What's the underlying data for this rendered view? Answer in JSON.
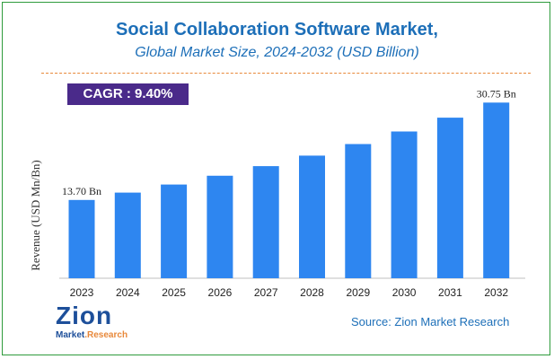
{
  "header": {
    "title": "Social Collaboration Software Market,",
    "subtitle": "Global Market Size, 2024-2032 (USD Billion)"
  },
  "badge": {
    "cagr": "CAGR : 9.40%"
  },
  "footer": {
    "source": "Source: Zion Market Research",
    "logo_main": "Zion",
    "logo_sub_1": "Market",
    "logo_sub_2": ".Research"
  },
  "colors": {
    "bar": "#2e86f0",
    "title": "#1d6fb8",
    "badge": "#4a2a8a",
    "divider": "#e8883a"
  },
  "chart_data": {
    "type": "bar",
    "title": "Social Collaboration Software Market,",
    "subtitle": "Global Market Size, 2024-2032 (USD Billion)",
    "xlabel": "",
    "ylabel": "Revenue (USD Mn/Bn)",
    "categories": [
      "2023",
      "2024",
      "2025",
      "2026",
      "2027",
      "2028",
      "2029",
      "2030",
      "2031",
      "2032"
    ],
    "values": [
      13.7,
      14.99,
      16.4,
      17.94,
      19.62,
      21.47,
      23.49,
      25.7,
      28.11,
      30.75
    ],
    "data_labels": [
      {
        "index": 0,
        "text": "13.70 Bn"
      },
      {
        "index": 9,
        "text": "30.75 Bn"
      }
    ],
    "ylim": [
      0,
      33
    ],
    "grid": false,
    "legend": "none"
  }
}
